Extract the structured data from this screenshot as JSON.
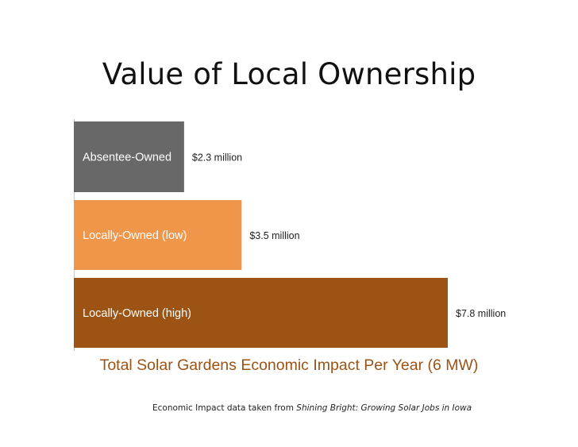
{
  "slide": {
    "title": "Value of Local Ownership",
    "footnote_prefix": "Economic Impact data taken from ",
    "footnote_source": "Shining Bright: Growing Solar Jobs in Iowa"
  },
  "chart_data": {
    "type": "bar",
    "orientation": "horizontal",
    "title": "",
    "xlabel": "Total Solar Gardens Economic Impact Per Year (6 MW)",
    "ylabel": "",
    "categories": [
      "Absentee-Owned",
      "Locally-Owned (low)",
      "Locally-Owned (high)"
    ],
    "values": [
      2.3,
      3.5,
      7.8
    ],
    "value_labels": [
      "$2.3 million",
      "$3.5 million",
      "$7.8 million"
    ],
    "units": "million USD",
    "xlim": [
      0,
      7.8
    ],
    "grid": false,
    "legend": "none",
    "colors": [
      "#686868",
      "#f0964b",
      "#9c5314"
    ]
  }
}
